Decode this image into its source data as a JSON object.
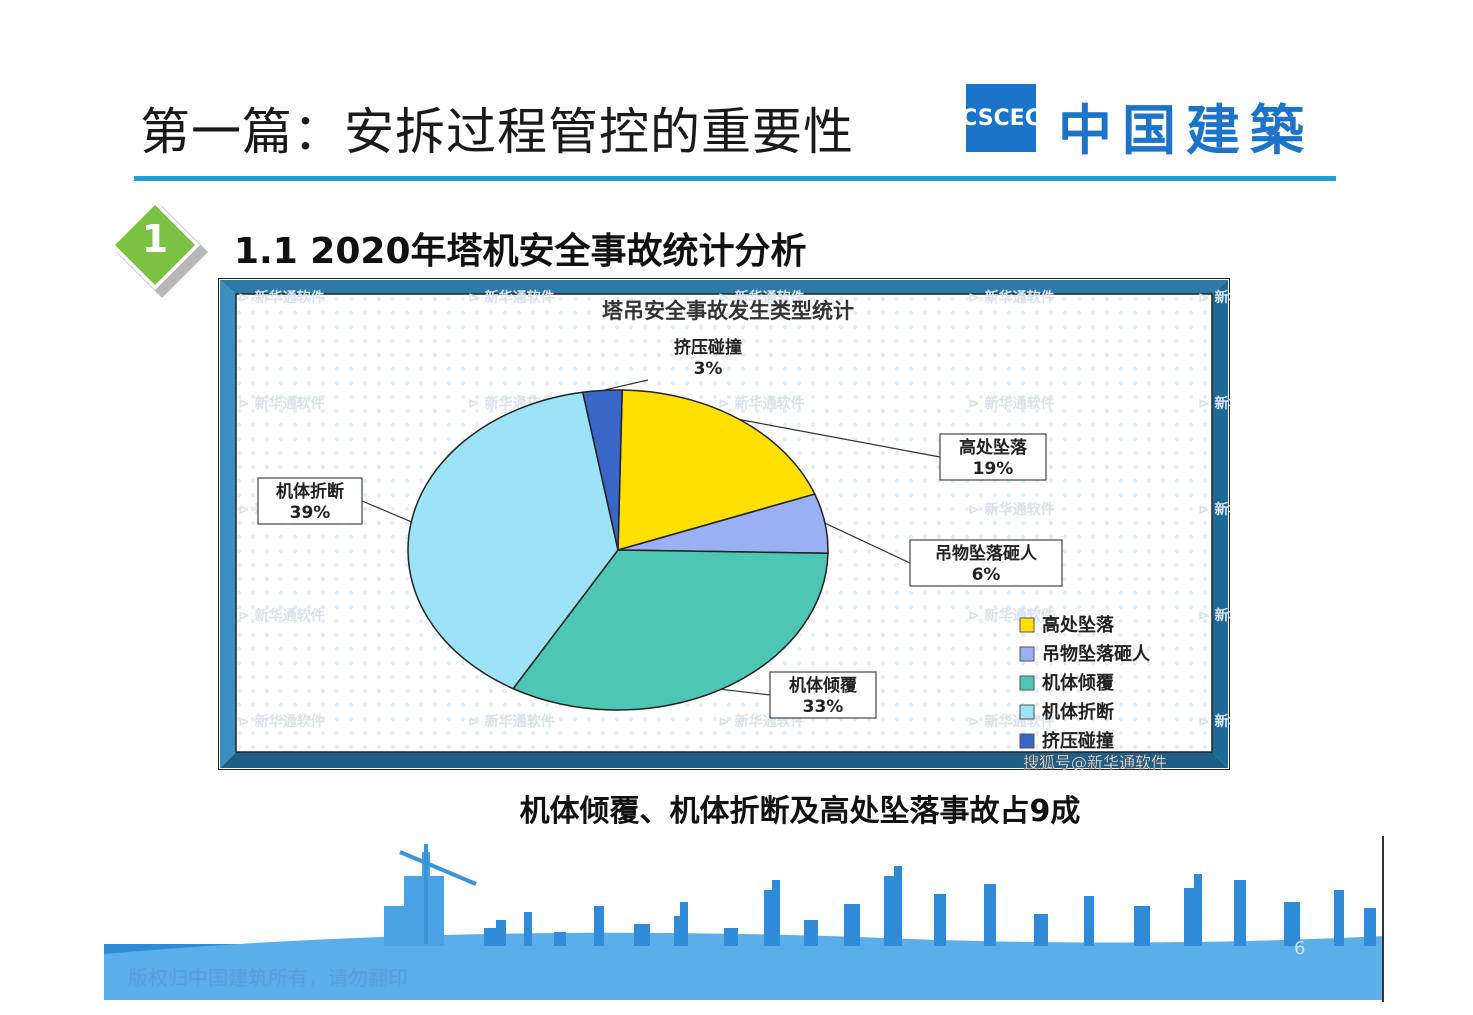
{
  "header": {
    "title": "第一篇：安拆过程管控的重要性",
    "logo_mark": "CSCEC",
    "logo_text": "中国建築"
  },
  "section": {
    "number": "1",
    "title": "1.1 2020年塔机安全事故统计分析"
  },
  "watermark_text": "新华通软件",
  "source_watermark": "搜狐号@新华通软件",
  "caption": "机体倾覆、机体折断及高处坠落事故占9成",
  "footer": {
    "page_number": "6",
    "copyright": "版权归中国建筑所有，请勿翻印"
  },
  "colors": {
    "accent_blue": "#1f9fd8",
    "brand_blue": "#1c74c8",
    "badge_green": "#7cc242"
  },
  "chart_data": {
    "type": "pie",
    "title": "塔吊安全事故发生类型统计",
    "legend_position": "bottom-right",
    "slices": [
      {
        "name": "高处坠落",
        "value": 19,
        "label": "19%",
        "color": "#ffe000"
      },
      {
        "name": "吊物坠落砸人",
        "value": 6,
        "label": "6%",
        "color": "#9ab0f4"
      },
      {
        "name": "机体倾覆",
        "value": 33,
        "label": "33%",
        "color": "#4ec6b4"
      },
      {
        "name": "机体折断",
        "value": 39,
        "label": "39%",
        "color": "#9de3f7"
      },
      {
        "name": "挤压碰撞",
        "value": 3,
        "label": "3%",
        "color": "#3a66c8"
      }
    ]
  }
}
